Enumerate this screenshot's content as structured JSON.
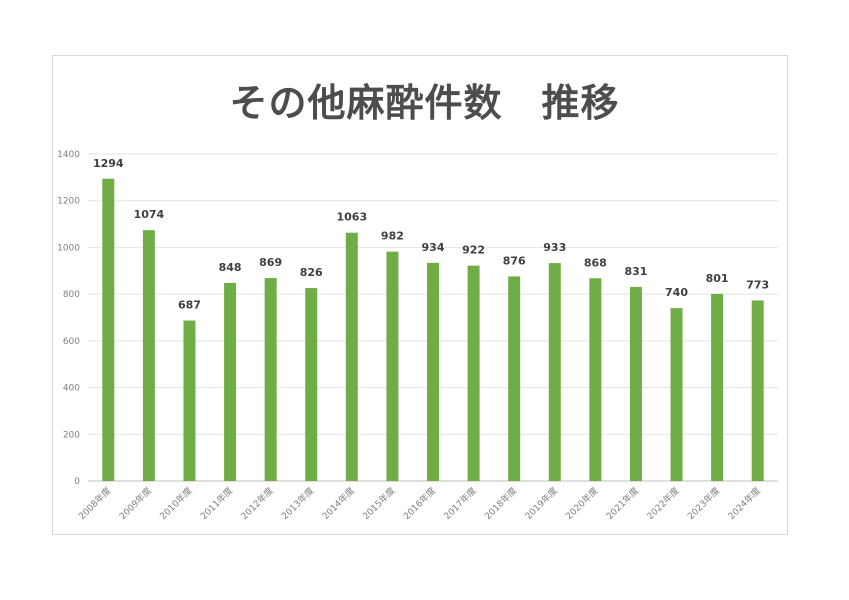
{
  "chart_data": {
    "type": "bar",
    "title": "その他麻酔件数　推移",
    "categories": [
      "2008年度",
      "2009年度",
      "2010年度",
      "2011年度",
      "2012年度",
      "2013年度",
      "2014年度",
      "2015年度",
      "2016年度",
      "2017年度",
      "2018年度",
      "2019年度",
      "2020年度",
      "2021年度",
      "2022年度",
      "2023年度",
      "2024年度"
    ],
    "values": [
      1294,
      1074,
      687,
      848,
      869,
      826,
      1063,
      982,
      934,
      922,
      876,
      933,
      868,
      831,
      740,
      801,
      773
    ],
    "ylim": [
      0,
      1400
    ],
    "yticks": [
      0,
      200,
      400,
      600,
      800,
      1000,
      1200,
      1400
    ],
    "grid": true,
    "bar_color": "#70ad47"
  }
}
